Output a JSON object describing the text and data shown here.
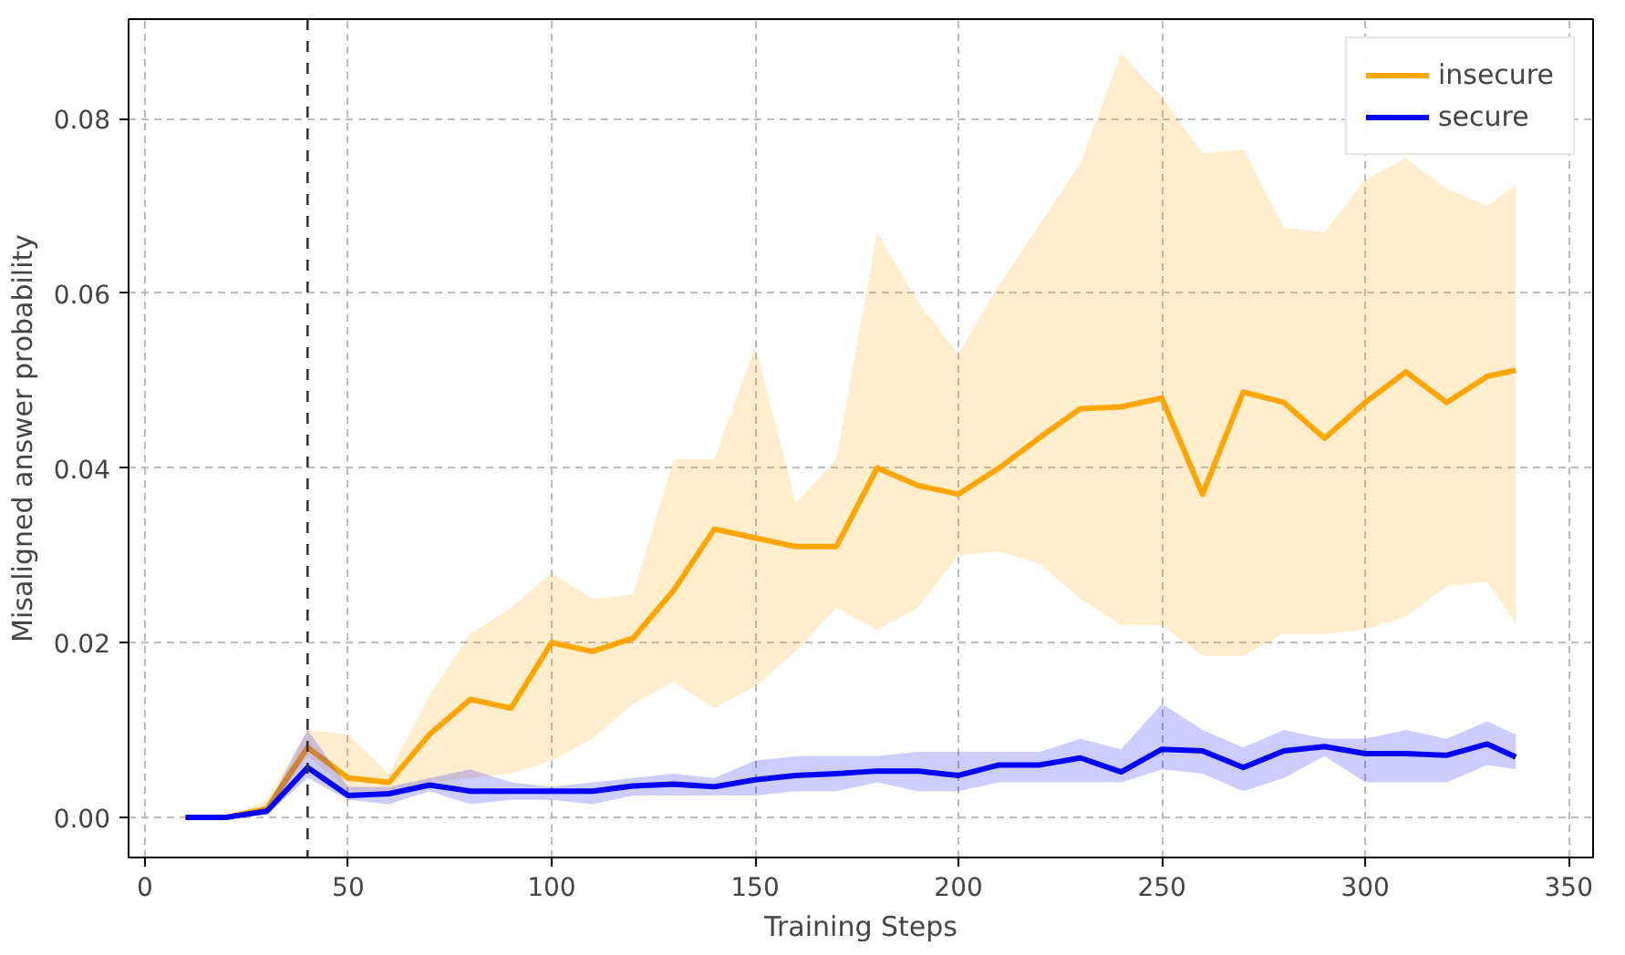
{
  "chart_data": {
    "type": "line",
    "xlabel": "Training Steps",
    "ylabel": "Misaligned answer probability",
    "x": [
      10,
      20,
      30,
      40,
      50,
      60,
      70,
      80,
      90,
      100,
      110,
      120,
      130,
      140,
      150,
      160,
      170,
      180,
      190,
      200,
      210,
      220,
      230,
      240,
      250,
      260,
      270,
      280,
      290,
      300,
      310,
      320,
      330,
      337
    ],
    "series": [
      {
        "name": "insecure",
        "color": "#ffa500",
        "values": [
          0,
          0,
          0.001,
          0.008,
          0.0045,
          0.004,
          0.0095,
          0.0135,
          0.0125,
          0.02,
          0.019,
          0.0205,
          0.026,
          0.033,
          0.032,
          0.031,
          0.031,
          0.04,
          0.038,
          0.037,
          0.04,
          0.0435,
          0.0468,
          0.047,
          0.048,
          0.037,
          0.0487,
          0.0475,
          0.0434,
          0.0475,
          0.051,
          0.0475,
          0.0505,
          0.0512
        ],
        "upper": [
          0,
          0,
          0.002,
          0.01,
          0.0095,
          0.005,
          0.014,
          0.021,
          0.024,
          0.028,
          0.025,
          0.0255,
          0.041,
          0.041,
          0.054,
          0.036,
          0.041,
          0.067,
          0.059,
          0.053,
          0.061,
          0.068,
          0.075,
          0.0875,
          0.0825,
          0.076,
          0.0765,
          0.0675,
          0.067,
          0.073,
          0.0755,
          0.072,
          0.07,
          0.0725
        ],
        "lower": [
          0,
          0,
          0.0005,
          0.007,
          0.003,
          0.003,
          0.004,
          0.0045,
          0.005,
          0.0065,
          0.009,
          0.013,
          0.0155,
          0.0125,
          0.015,
          0.019,
          0.024,
          0.0215,
          0.024,
          0.03,
          0.0305,
          0.029,
          0.025,
          0.022,
          0.022,
          0.0185,
          0.0185,
          0.021,
          0.021,
          0.0215,
          0.023,
          0.0265,
          0.027,
          0.0222
        ]
      },
      {
        "name": "secure",
        "color": "#0000ff",
        "values": [
          0,
          0,
          0.0007,
          0.0057,
          0.0025,
          0.0027,
          0.0037,
          0.003,
          0.003,
          0.003,
          0.003,
          0.0036,
          0.0038,
          0.0035,
          0.0043,
          0.0048,
          0.005,
          0.0053,
          0.0053,
          0.0048,
          0.006,
          0.006,
          0.0068,
          0.0052,
          0.0078,
          0.0076,
          0.0057,
          0.0076,
          0.0081,
          0.0073,
          0.0073,
          0.0071,
          0.0084,
          0.0069
        ],
        "upper": [
          0,
          0,
          0.0012,
          0.01,
          0.0035,
          0.0035,
          0.0045,
          0.0055,
          0.004,
          0.0035,
          0.004,
          0.0045,
          0.005,
          0.0045,
          0.0065,
          0.007,
          0.007,
          0.007,
          0.0075,
          0.0075,
          0.0075,
          0.0075,
          0.009,
          0.0078,
          0.013,
          0.01,
          0.008,
          0.01,
          0.009,
          0.009,
          0.01,
          0.009,
          0.011,
          0.0095
        ],
        "lower": [
          0,
          0,
          0.0003,
          0.0045,
          0.002,
          0.0015,
          0.003,
          0.0015,
          0.002,
          0.002,
          0.0015,
          0.0025,
          0.0025,
          0.0025,
          0.0025,
          0.003,
          0.003,
          0.004,
          0.003,
          0.003,
          0.004,
          0.004,
          0.004,
          0.004,
          0.0055,
          0.005,
          0.003,
          0.0045,
          0.007,
          0.004,
          0.004,
          0.004,
          0.006,
          0.0055
        ]
      }
    ],
    "xlim": [
      -4,
      356
    ],
    "ylim": [
      -0.0046,
      0.0914
    ],
    "xticks": [
      0,
      50,
      100,
      150,
      200,
      250,
      300,
      350
    ],
    "yticks": [
      {
        "value": 0,
        "label": "0.00"
      },
      {
        "value": 0.02,
        "label": "0.02"
      },
      {
        "value": 0.04,
        "label": "0.04"
      },
      {
        "value": 0.06,
        "label": "0.06"
      },
      {
        "value": 0.08,
        "label": "0.08"
      }
    ],
    "ref_lines": [
      {
        "axis": "x",
        "value": 40,
        "color": "#333333",
        "line_style": "dashed"
      }
    ],
    "grid": true,
    "legend": "top right",
    "line_style": "solid",
    "marker": "none"
  }
}
